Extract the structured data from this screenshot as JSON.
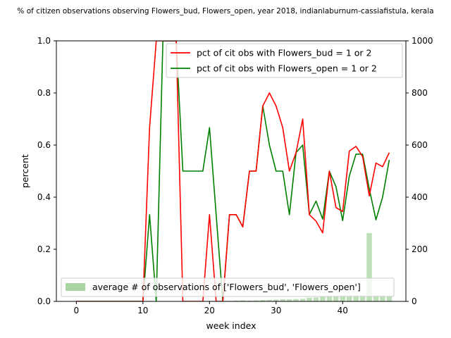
{
  "chart_data": {
    "type": "line",
    "title": "% of citizen observations observing Flowers_bud, Flowers_open, year 2018, indianlaburnum-cassiafistula, kerala",
    "xlabel": "week index",
    "ylabel": "percent",
    "xlim": [
      -3,
      49.5
    ],
    "ylim": [
      0,
      1
    ],
    "y2lim": [
      0,
      1000
    ],
    "x_ticks": [
      0,
      10,
      20,
      30,
      40
    ],
    "y_ticks": [
      0.0,
      0.2,
      0.4,
      0.6,
      0.8,
      1.0
    ],
    "y_tick_labels": [
      "0.0",
      "0.2",
      "0.4",
      "0.6",
      "0.8",
      "1.0"
    ],
    "y2_ticks": [
      0,
      200,
      400,
      600,
      800,
      1000
    ],
    "y2_tick_labels": [
      "0",
      "200",
      "400",
      "600",
      "800",
      "1000"
    ],
    "grid": false,
    "x": [
      0,
      1,
      2,
      3,
      4,
      5,
      6,
      7,
      8,
      9,
      10,
      11,
      12,
      13,
      14,
      15,
      16,
      17,
      18,
      19,
      20,
      21,
      22,
      23,
      24,
      25,
      26,
      27,
      28,
      29,
      30,
      31,
      32,
      33,
      34,
      35,
      36,
      37,
      38,
      39,
      40,
      41,
      42,
      43,
      44,
      45,
      46,
      47
    ],
    "series": [
      {
        "name": "pct of cit obs with Flowers_bud = 1 or 2",
        "color": "#ff0000",
        "values": [
          0,
          0,
          0,
          0,
          0,
          0,
          0,
          0,
          0,
          0,
          0,
          0.667,
          1.0,
          1.0,
          1.0,
          1.0,
          0,
          0,
          0,
          0,
          0.333,
          0,
          0,
          0.333,
          0.333,
          0.286,
          0.5,
          0.5,
          0.75,
          0.8,
          0.75,
          0.667,
          0.5,
          0.571,
          0.7,
          0.333,
          0.308,
          0.263,
          0.5,
          0.36,
          0.345,
          0.577,
          0.595,
          0.556,
          0.405,
          0.531,
          0.517,
          0.571
        ]
      },
      {
        "name": "pct of cit obs with Flowers_open = 1 or 2",
        "color": "#008000",
        "values": [
          0,
          0,
          0,
          0,
          0,
          0,
          0,
          0,
          0,
          0,
          0,
          0.333,
          0,
          1.0,
          1.0,
          1.0,
          0.5,
          0.5,
          0.5,
          0.5,
          0.667,
          0.333,
          0,
          0.333,
          0.333,
          0.286,
          0.5,
          0.5,
          0.75,
          0.6,
          0.5,
          0.5,
          0.333,
          0.571,
          0.6,
          0.333,
          0.385,
          0.316,
          0.5,
          0.44,
          0.31,
          0.481,
          0.565,
          0.565,
          0.432,
          0.313,
          0.4,
          0.543
        ]
      },
      {
        "name": "average # of observations of ['Flowers_bud', 'Flowers_open']",
        "type": "bar",
        "axis": "right",
        "color": "#a8d5a2",
        "values": [
          0,
          0,
          0,
          0,
          0,
          0,
          0,
          0,
          0,
          0,
          0,
          2,
          1,
          1,
          1,
          1,
          1,
          1,
          1,
          2,
          2,
          2,
          2,
          2,
          3,
          4,
          3,
          4,
          5,
          6,
          7,
          8,
          8,
          9,
          10,
          14,
          15,
          18,
          20,
          22,
          24,
          24,
          25,
          25,
          262,
          24,
          24,
          21
        ]
      }
    ],
    "legend_top_placement": "upper-right",
    "legend_bottom_placement": "lower-center"
  }
}
